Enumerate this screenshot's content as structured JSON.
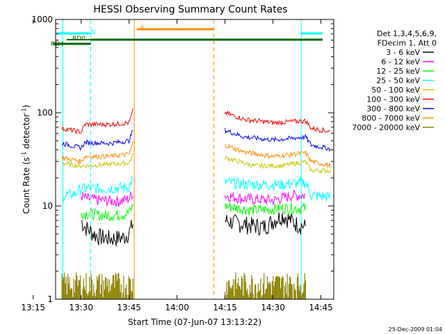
{
  "chart_data": {
    "type": "line",
    "title": "HESSI Observing Summary Count Rates",
    "xlabel": "Start Time (07-Jun-07 13:13:22)",
    "ylabel_main": "Count Rate (s",
    "ylabel_sup1": "-1",
    "ylabel_mid": " detector",
    "ylabel_sup2": "-1",
    "ylabel_end": ")",
    "y_scale": "log",
    "ylim": [
      1,
      1000
    ],
    "xlim_minutes": [
      13.367,
      14.817
    ],
    "x_tick_labels": [
      "13:15",
      "13:30",
      "13:45",
      "14:00",
      "14:15",
      "14:30",
      "14:45"
    ],
    "y_tick_labels": [
      "1",
      "10",
      "100",
      "1000"
    ],
    "footer_date": "25-Dec-2009 01:04",
    "legend": {
      "placement": "right",
      "header": [
        "Det 1,3,4,5,6,9,",
        "FDecim 1, Att 0"
      ],
      "entries": [
        {
          "label": "3 - 6 keV",
          "color": "#000000"
        },
        {
          "label": "6 - 12 keV",
          "color": "#ff00ff"
        },
        {
          "label": "12 - 25 keV",
          "color": "#00ff00"
        },
        {
          "label": "25 - 50 keV",
          "color": "#00ffff"
        },
        {
          "label": "50 - 100 keV",
          "color": "#c8c800"
        },
        {
          "label": "100 - 300 keV",
          "color": "#ff0000"
        },
        {
          "label": "300 - 800 keV",
          "color": "#0000ff"
        },
        {
          "label": "800 - 7000 keV",
          "color": "#ff8c00"
        },
        {
          "label": "7000 - 20000 keV",
          "color": "#8b8000"
        }
      ]
    },
    "flags": [
      {
        "label": "N",
        "color": "#00ffff"
      },
      {
        "label": "RD0",
        "color": "#006400"
      },
      {
        "label": "RD4",
        "color": "#006400"
      },
      {
        "label": "S",
        "color": "#ff8c00"
      }
    ],
    "series": [
      {
        "name": "3 - 6 keV",
        "color": "#000000",
        "segments": [
          [
            [
              13.5,
              7
            ],
            [
              13.52,
              6
            ],
            [
              13.58,
              4.8
            ],
            [
              13.65,
              4.5
            ],
            [
              13.72,
              4.6
            ],
            [
              13.75,
              5.2
            ],
            [
              13.77,
              6.5
            ]
          ],
          [
            [
              14.25,
              7
            ],
            [
              14.33,
              6.5
            ],
            [
              14.45,
              6
            ],
            [
              14.55,
              8
            ],
            [
              14.62,
              6.5
            ],
            [
              14.67,
              6
            ]
          ]
        ]
      },
      {
        "name": "6 - 12 keV",
        "color": "#ff00ff",
        "segments": [
          [
            [
              13.5,
              13
            ],
            [
              13.53,
              12
            ],
            [
              13.6,
              11.5
            ],
            [
              13.7,
              11.3
            ],
            [
              13.75,
              12
            ],
            [
              13.77,
              14
            ]
          ],
          [
            [
              14.25,
              13
            ],
            [
              14.35,
              12
            ],
            [
              14.5,
              11.5
            ],
            [
              14.6,
              13
            ],
            [
              14.67,
              13
            ]
          ]
        ]
      },
      {
        "name": "12 - 25 keV",
        "color": "#00ff00",
        "segments": [
          [
            [
              13.5,
              8.5
            ],
            [
              13.6,
              8
            ],
            [
              13.7,
              8
            ],
            [
              13.75,
              8.5
            ],
            [
              13.77,
              10
            ]
          ],
          [
            [
              14.25,
              10
            ],
            [
              14.4,
              9
            ],
            [
              14.55,
              9.5
            ],
            [
              14.67,
              9.5
            ]
          ]
        ]
      },
      {
        "name": "25 - 50 keV",
        "color": "#00ffff",
        "segments": [
          [
            [
              13.4,
              13
            ],
            [
              13.47,
              13.5
            ],
            [
              13.5,
              15.5
            ],
            [
              13.65,
              15.5
            ],
            [
              13.75,
              16
            ],
            [
              13.77,
              20
            ]
          ],
          [
            [
              14.25,
              18
            ],
            [
              14.4,
              17
            ],
            [
              14.55,
              17
            ],
            [
              14.67,
              18
            ],
            [
              14.7,
              13
            ],
            [
              14.8,
              12.5
            ]
          ]
        ]
      },
      {
        "name": "50 - 100 keV",
        "color": "#c8c800",
        "segments": [
          [
            [
              13.4,
              29
            ],
            [
              13.48,
              27
            ],
            [
              13.52,
              27
            ],
            [
              13.65,
              28
            ],
            [
              13.75,
              29
            ],
            [
              13.77,
              35
            ]
          ],
          [
            [
              14.25,
              33
            ],
            [
              14.4,
              27
            ],
            [
              14.55,
              27
            ],
            [
              14.67,
              30
            ],
            [
              14.7,
              24
            ],
            [
              14.8,
              24
            ]
          ]
        ]
      },
      {
        "name": "100 - 300 keV",
        "color": "#ff0000",
        "segments": [
          [
            [
              13.4,
              68
            ],
            [
              13.45,
              65
            ],
            [
              13.5,
              62
            ],
            [
              13.52,
              75
            ],
            [
              13.65,
              75
            ],
            [
              13.75,
              78
            ],
            [
              13.77,
              105
            ]
          ],
          [
            [
              14.25,
              100
            ],
            [
              14.35,
              85
            ],
            [
              14.5,
              78
            ],
            [
              14.67,
              82
            ],
            [
              14.7,
              68
            ],
            [
              14.8,
              63
            ]
          ]
        ]
      },
      {
        "name": "300 - 800 keV",
        "color": "#0000ff",
        "segments": [
          [
            [
              13.4,
              47
            ],
            [
              13.46,
              44
            ],
            [
              13.5,
              42
            ],
            [
              13.52,
              48
            ],
            [
              13.65,
              47
            ],
            [
              13.75,
              50
            ],
            [
              13.77,
              65
            ]
          ],
          [
            [
              14.25,
              65
            ],
            [
              14.35,
              55
            ],
            [
              14.5,
              51
            ],
            [
              14.67,
              55
            ],
            [
              14.7,
              45
            ],
            [
              14.8,
              41
            ]
          ]
        ]
      },
      {
        "name": "800 - 7000 keV",
        "color": "#ff8c00",
        "segments": [
          [
            [
              13.4,
              33
            ],
            [
              13.47,
              31
            ],
            [
              13.5,
              30
            ],
            [
              13.52,
              34
            ],
            [
              13.65,
              34
            ],
            [
              13.75,
              36
            ],
            [
              13.77,
              48
            ]
          ],
          [
            [
              14.25,
              45
            ],
            [
              14.35,
              38
            ],
            [
              14.5,
              34
            ],
            [
              14.67,
              37
            ],
            [
              14.7,
              30
            ],
            [
              14.8,
              27
            ]
          ]
        ]
      },
      {
        "name": "7000 - 20000 keV",
        "color": "#8b8000",
        "segments": [
          [
            [
              13.4,
              1.8
            ],
            [
              13.5,
              1.8
            ],
            [
              13.6,
              1.8
            ],
            [
              13.7,
              1.8
            ],
            [
              13.77,
              1.9
            ]
          ],
          [
            [
              14.25,
              1.8
            ],
            [
              14.4,
              1.8
            ],
            [
              14.55,
              1.8
            ],
            [
              14.67,
              1.8
            ]
          ]
        ]
      }
    ]
  }
}
